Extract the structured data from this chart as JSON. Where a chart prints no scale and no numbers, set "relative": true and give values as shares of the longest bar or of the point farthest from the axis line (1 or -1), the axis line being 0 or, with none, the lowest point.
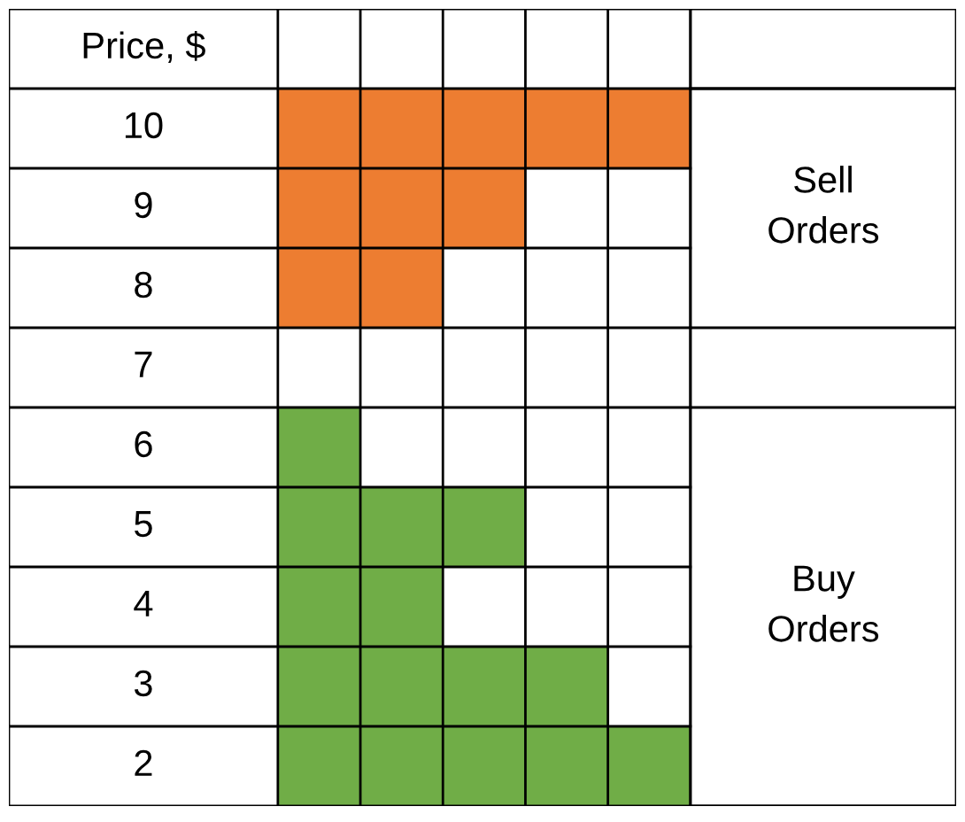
{
  "chart_data": {
    "type": "bar",
    "orientation": "horizontal",
    "relative": true,
    "ylabel": "Price, $",
    "categories": [
      "10",
      "9",
      "8",
      "7",
      "6",
      "5",
      "4",
      "3",
      "2"
    ],
    "series": [
      {
        "name": "Sell Orders",
        "color": "#ed7d31",
        "values": [
          1.0,
          0.6,
          0.4,
          null,
          null,
          null,
          null,
          null,
          null
        ]
      },
      {
        "name": "Buy Orders",
        "color": "#70ad47",
        "values": [
          null,
          null,
          null,
          null,
          0.2,
          0.6,
          0.4,
          0.8,
          1.0
        ]
      }
    ],
    "grid": true,
    "legend": false
  }
}
